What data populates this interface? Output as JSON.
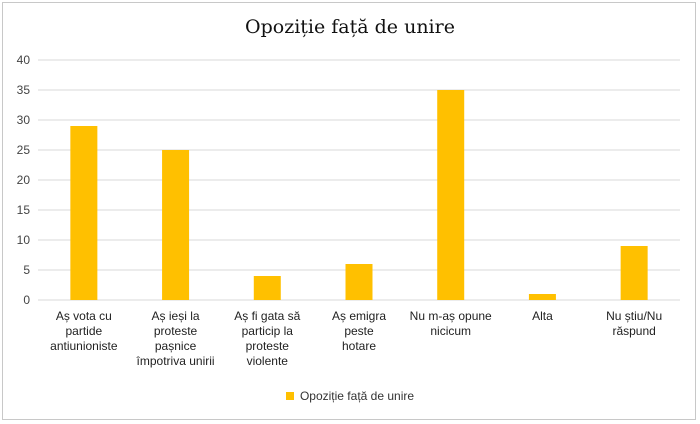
{
  "chart_data": {
    "type": "bar",
    "title": "Opoziție față de unire",
    "categories": [
      "Aș vota cu partide antiunioniste",
      "Aș ieși la proteste pașnice împotriva unirii",
      "Aș fi gata să particip la proteste violente",
      "Aș emigra peste hotare",
      "Nu m-aș opune nicicum",
      "Alta",
      "Nu știu/Nu răspund"
    ],
    "category_lines": [
      [
        "Aș vota cu",
        "partide",
        "antiunioniste"
      ],
      [
        "Aș ieși la",
        "proteste",
        "pașnice",
        "împotriva unirii"
      ],
      [
        "Aș fi gata să",
        "particip la",
        "proteste",
        "violente"
      ],
      [
        "Aș emigra peste",
        "hotare"
      ],
      [
        "Nu m-aș opune",
        "nicicum"
      ],
      [
        "Alta"
      ],
      [
        "Nu știu/Nu",
        "răspund"
      ]
    ],
    "series": [
      {
        "name": "Opoziție față de unire",
        "values": [
          29,
          25,
          4,
          6,
          35,
          1,
          9
        ]
      }
    ],
    "ylim": [
      0,
      40
    ],
    "yticks": [
      "0",
      "5",
      "10",
      "15",
      "20",
      "25",
      "30",
      "35",
      "40"
    ],
    "xlabel": "",
    "ylabel": "",
    "grid": true,
    "legend": "bottom",
    "bar_color": "#ffc000",
    "grid_color": "#d9d9d9"
  }
}
